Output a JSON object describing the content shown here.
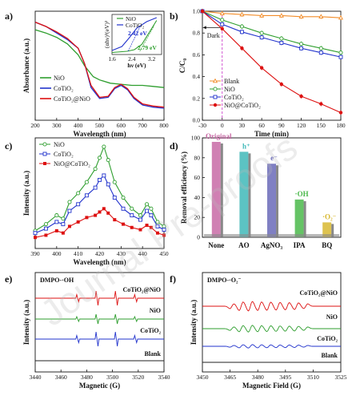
{
  "watermark": "Journal Pre-proofs",
  "chart_data": [
    {
      "panel": "a)",
      "type": "line",
      "xlabel": "Wavelength (nm)",
      "ylabel": "Absorbance (a.u.)",
      "xlim": [
        200,
        800
      ],
      "xticks": [
        200,
        300,
        400,
        500,
        600,
        700,
        800
      ],
      "series": [
        {
          "name": "NiO",
          "color": "#2e9e2e",
          "points": [
            [
              200,
              0.83
            ],
            [
              250,
              0.8
            ],
            [
              300,
              0.76
            ],
            [
              350,
              0.7
            ],
            [
              400,
              0.6
            ],
            [
              430,
              0.5
            ],
            [
              470,
              0.4
            ],
            [
              500,
              0.37
            ],
            [
              550,
              0.34
            ],
            [
              600,
              0.33
            ],
            [
              650,
              0.32
            ],
            [
              700,
              0.32
            ],
            [
              750,
              0.31
            ],
            [
              800,
              0.3
            ]
          ]
        },
        {
          "name": "CoTiO₂",
          "color": "#2233cc",
          "points": [
            [
              200,
              0.9
            ],
            [
              250,
              0.86
            ],
            [
              300,
              0.8
            ],
            [
              350,
              0.74
            ],
            [
              400,
              0.66
            ],
            [
              430,
              0.52
            ],
            [
              460,
              0.3
            ],
            [
              500,
              0.2
            ],
            [
              540,
              0.21
            ],
            [
              570,
              0.29
            ],
            [
              600,
              0.32
            ],
            [
              630,
              0.28
            ],
            [
              660,
              0.2
            ],
            [
              700,
              0.14
            ],
            [
              750,
              0.12
            ],
            [
              800,
              0.11
            ]
          ]
        },
        {
          "name": "CoTiO₂@NiO",
          "color": "#dd1111",
          "points": [
            [
              200,
              0.9
            ],
            [
              250,
              0.86
            ],
            [
              300,
              0.81
            ],
            [
              350,
              0.75
            ],
            [
              400,
              0.66
            ],
            [
              430,
              0.52
            ],
            [
              460,
              0.32
            ],
            [
              500,
              0.21
            ],
            [
              540,
              0.22
            ],
            [
              570,
              0.3
            ],
            [
              600,
              0.33
            ],
            [
              630,
              0.29
            ],
            [
              660,
              0.21
            ],
            [
              700,
              0.15
            ],
            [
              750,
              0.13
            ],
            [
              800,
              0.12
            ]
          ]
        }
      ],
      "inset": {
        "xlabel": "hν (eV)",
        "ylabel": "(αhν)²(eV)²",
        "xlim": [
          1.6,
          3.6
        ],
        "xticks": [
          1.6,
          2.4,
          3.2
        ],
        "series": [
          {
            "name": "NiO",
            "color": "#2e9e2e"
          },
          {
            "name": "CoTiO₂",
            "color": "#2233cc"
          }
        ],
        "annotations": [
          {
            "text": "2.42 eV",
            "color": "#2233cc"
          },
          {
            "text": "2.79 eV",
            "color": "#2e9e2e"
          }
        ]
      }
    },
    {
      "panel": "b)",
      "type": "line",
      "xlabel": "Time (min)",
      "ylabel": "C/C₀",
      "xlim": [
        -30,
        180
      ],
      "ylim": [
        0.0,
        1.0
      ],
      "xticks": [
        -30,
        0,
        30,
        60,
        90,
        120,
        150,
        180
      ],
      "yticks": [
        0.0,
        0.2,
        0.4,
        0.6,
        0.8,
        1.0
      ],
      "annotation": "Dark",
      "x": [
        -30,
        0,
        30,
        60,
        90,
        120,
        150,
        180
      ],
      "series": [
        {
          "name": "Blank",
          "color": "#f28c28",
          "values": [
            1.0,
            0.98,
            0.97,
            0.96,
            0.96,
            0.95,
            0.95,
            0.94
          ]
        },
        {
          "name": "NiO",
          "color": "#2e9e2e",
          "values": [
            1.0,
            0.92,
            0.86,
            0.8,
            0.75,
            0.7,
            0.66,
            0.62
          ]
        },
        {
          "name": "CoTiO₂",
          "color": "#2233cc",
          "values": [
            1.0,
            0.88,
            0.81,
            0.76,
            0.71,
            0.66,
            0.62,
            0.58
          ]
        },
        {
          "name": "NiO@CoTiO₂",
          "color": "#dd1111",
          "values": [
            1.0,
            0.84,
            0.66,
            0.48,
            0.33,
            0.22,
            0.15,
            0.07
          ]
        }
      ]
    },
    {
      "panel": "c)",
      "type": "line",
      "xlabel": "Wavelength (nm)",
      "ylabel": "Intensity (a.u.)",
      "xlim": [
        390,
        450
      ],
      "xticks": [
        390,
        400,
        410,
        420,
        430,
        440,
        450
      ],
      "series": [
        {
          "name": "NiO",
          "color": "#2e9e2e",
          "points": [
            [
              390,
              0.16
            ],
            [
              395,
              0.22
            ],
            [
              400,
              0.3
            ],
            [
              403,
              0.27
            ],
            [
              406,
              0.42
            ],
            [
              410,
              0.5
            ],
            [
              414,
              0.6
            ],
            [
              418,
              0.72
            ],
            [
              420,
              0.82
            ],
            [
              422,
              0.92
            ],
            [
              424,
              0.8
            ],
            [
              427,
              0.6
            ],
            [
              431,
              0.46
            ],
            [
              435,
              0.36
            ],
            [
              439,
              0.3
            ],
            [
              442,
              0.4
            ],
            [
              444,
              0.36
            ],
            [
              447,
              0.24
            ],
            [
              450,
              0.2
            ]
          ]
        },
        {
          "name": "CoTiO₂",
          "color": "#2233cc",
          "points": [
            [
              390,
              0.14
            ],
            [
              395,
              0.18
            ],
            [
              400,
              0.24
            ],
            [
              403,
              0.22
            ],
            [
              406,
              0.34
            ],
            [
              410,
              0.4
            ],
            [
              414,
              0.48
            ],
            [
              418,
              0.55
            ],
            [
              420,
              0.62
            ],
            [
              422,
              0.66
            ],
            [
              424,
              0.58
            ],
            [
              427,
              0.46
            ],
            [
              431,
              0.36
            ],
            [
              435,
              0.3
            ],
            [
              439,
              0.26
            ],
            [
              442,
              0.34
            ],
            [
              444,
              0.3
            ],
            [
              447,
              0.2
            ],
            [
              450,
              0.17
            ]
          ]
        },
        {
          "name": "NiO@CoTiO₂",
          "color": "#dd1111",
          "points": [
            [
              390,
              0.1
            ],
            [
              395,
              0.12
            ],
            [
              400,
              0.16
            ],
            [
              403,
              0.14
            ],
            [
              406,
              0.2
            ],
            [
              410,
              0.24
            ],
            [
              414,
              0.28
            ],
            [
              418,
              0.3
            ],
            [
              420,
              0.33
            ],
            [
              422,
              0.36
            ],
            [
              424,
              0.32
            ],
            [
              427,
              0.26
            ],
            [
              431,
              0.22
            ],
            [
              435,
              0.19
            ],
            [
              439,
              0.17
            ],
            [
              442,
              0.21
            ],
            [
              444,
              0.19
            ],
            [
              447,
              0.14
            ],
            [
              450,
              0.12
            ]
          ]
        }
      ]
    },
    {
      "panel": "d)",
      "type": "bar",
      "ylabel": "Removal efficiency (%)",
      "ylim": [
        0,
        100
      ],
      "yticks": [
        0,
        20,
        40,
        60,
        80,
        100
      ],
      "categories": [
        "None",
        "AO",
        "AgNO₃",
        "IPA",
        "BQ"
      ],
      "values": [
        96,
        86,
        74,
        38,
        15
      ],
      "bar_labels": [
        "Original",
        "h⁺",
        "e⁻",
        "·OH",
        "·O₂⁻"
      ],
      "colors": [
        "#c86aa6",
        "#3fb8b8",
        "#6a6ab8",
        "#4ab84a",
        "#d8b830"
      ]
    },
    {
      "panel": "e)",
      "type": "line",
      "xlabel": "Magnetic (G)",
      "ylabel": "Intensity (a.u.)",
      "xlim": [
        3440,
        3540
      ],
      "xticks": [
        3440,
        3460,
        3480,
        3500,
        3520,
        3540
      ],
      "title": "DMPO-·OH",
      "series": [
        {
          "name": "CoTiO₂@NiO",
          "color": "#dd1111"
        },
        {
          "name": "NiO",
          "color": "#2e9e2e"
        },
        {
          "name": "CoTiO₂",
          "color": "#2233cc"
        },
        {
          "name": "Blank",
          "color": "#222222"
        }
      ]
    },
    {
      "panel": "f)",
      "type": "line",
      "xlabel": "Magnetic Field (G)",
      "ylabel": "Intensity (a.u.)",
      "xlim": [
        3450,
        3525
      ],
      "xticks": [
        3450,
        3465,
        3480,
        3495,
        3510,
        3525
      ],
      "title": "DMPO-·O₂⁻",
      "series": [
        {
          "name": "CoTiO₂@NiO",
          "color": "#dd1111"
        },
        {
          "name": "NiO",
          "color": "#2e9e2e"
        },
        {
          "name": "CoTiO₂",
          "color": "#2233cc"
        },
        {
          "name": "Blank",
          "color": "#222222"
        }
      ]
    }
  ]
}
